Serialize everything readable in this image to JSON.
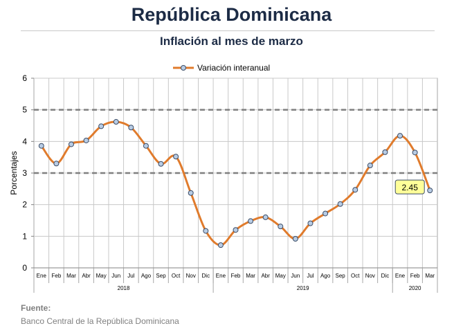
{
  "header": {
    "title": "República Dominicana",
    "subtitle": "Inflación al mes de marzo"
  },
  "source": {
    "label": "Fuente:",
    "text": "Banco Central de la República Dominicana"
  },
  "colors": {
    "line": "#e07b2c",
    "marker_fill": "#b8cce4",
    "marker_stroke": "#3b4c66",
    "target_band": "#7f7f7f",
    "callout_fill": "#ffff99",
    "callout_stroke": "#3b4c66"
  },
  "chart_data": {
    "type": "line",
    "title": "",
    "xlabel": "",
    "ylabel": "Porcentajes",
    "ylim": [
      0,
      6
    ],
    "yticks": [
      0,
      1,
      2,
      3,
      4,
      5,
      6
    ],
    "grid": true,
    "legend_position": "top-center",
    "categories": [
      "Ene",
      "Feb",
      "Mar",
      "Abr",
      "May",
      "Jun",
      "Jul",
      "Ago",
      "Sep",
      "Oct",
      "Nov",
      "Dic",
      "Ene",
      "Feb",
      "Mar",
      "Abr",
      "May",
      "Jun",
      "Jul",
      "Ago",
      "Sep",
      "Oct",
      "Nov",
      "Dic",
      "Ene",
      "Feb",
      "Mar"
    ],
    "groups": [
      {
        "label": "2018",
        "count": 12
      },
      {
        "label": "2019",
        "count": 12
      },
      {
        "label": "2020",
        "count": 3
      }
    ],
    "series": [
      {
        "name": "Variación interanual",
        "values": [
          3.86,
          3.3,
          3.91,
          4.03,
          4.48,
          4.62,
          4.44,
          3.86,
          3.29,
          3.52,
          2.37,
          1.17,
          0.72,
          1.2,
          1.48,
          1.6,
          1.31,
          0.92,
          1.41,
          1.72,
          2.02,
          2.47,
          3.24,
          3.66,
          4.18,
          3.65,
          2.45
        ]
      }
    ],
    "reference_lines": [
      3,
      5
    ],
    "annotation": {
      "label": "2.45",
      "index": 26
    }
  }
}
